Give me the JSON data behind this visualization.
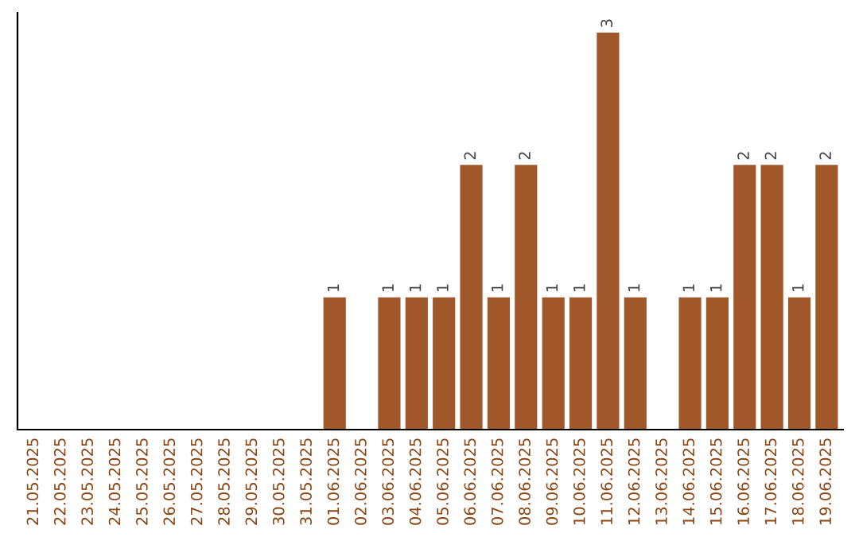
{
  "chart_data": {
    "type": "bar",
    "categories": [
      "21.05.2025",
      "22.05.2025",
      "23.05.2025",
      "24.05.2025",
      "25.05.2025",
      "26.05.2025",
      "27.05.2025",
      "28.05.2025",
      "29.05.2025",
      "30.05.2025",
      "31.05.2025",
      "01.06.2025",
      "02.06.2025",
      "03.06.2025",
      "04.06.2025",
      "05.06.2025",
      "06.06.2025",
      "07.06.2025",
      "08.06.2025",
      "09.06.2025",
      "10.06.2025",
      "11.06.2025",
      "12.06.2025",
      "13.06.2025",
      "14.06.2025",
      "15.06.2025",
      "16.06.2025",
      "17.06.2025",
      "18.06.2025",
      "19.06.2025"
    ],
    "values": [
      0,
      0,
      0,
      0,
      0,
      0,
      0,
      0,
      0,
      0,
      0,
      1,
      0,
      1,
      1,
      1,
      2,
      1,
      2,
      1,
      1,
      3,
      1,
      0,
      1,
      1,
      2,
      2,
      1,
      2
    ],
    "value_labels": [
      null,
      null,
      null,
      null,
      null,
      null,
      null,
      null,
      null,
      null,
      null,
      "1",
      null,
      "1",
      "1",
      "1",
      "2",
      "1",
      "2",
      "1",
      "1",
      "3",
      "1",
      null,
      "1",
      "1",
      "2",
      "2",
      "1",
      "2"
    ],
    "color": "#a0572a",
    "tick_labels": "x",
    "grid": false,
    "legend": false
  }
}
